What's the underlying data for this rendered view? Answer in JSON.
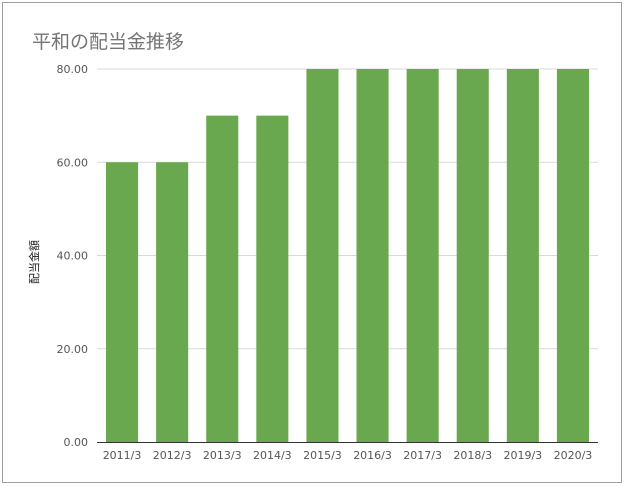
{
  "chart_data": {
    "type": "bar",
    "title": "平和の配当金推移",
    "ylabel": "配当金額",
    "xlabel": "",
    "categories": [
      "2011/3",
      "2012/3",
      "2013/3",
      "2014/3",
      "2015/3",
      "2016/3",
      "2017/3",
      "2018/3",
      "2019/3",
      "2020/3"
    ],
    "values": [
      60,
      60,
      70,
      70,
      80,
      80,
      80,
      80,
      80,
      80
    ],
    "ylim": [
      0,
      80
    ],
    "yticks": [
      "0.00",
      "20.00",
      "40.00",
      "60.00",
      "80.00"
    ],
    "grid": true,
    "bar_color": "#6aa84f"
  }
}
